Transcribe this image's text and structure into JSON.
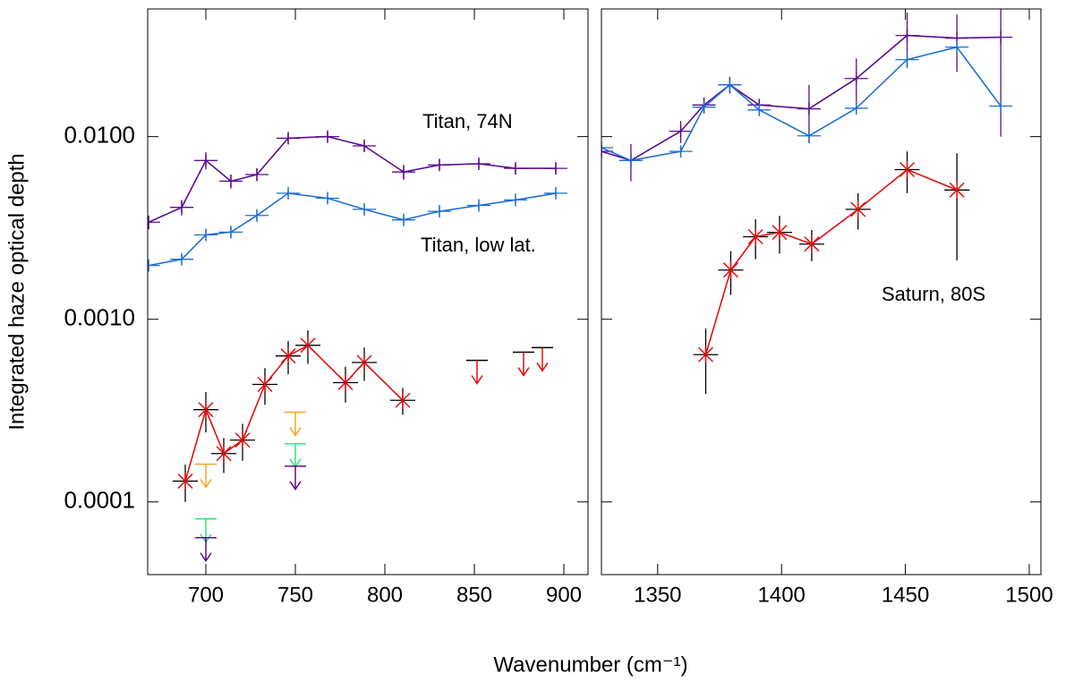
{
  "chart_data": [
    {
      "type": "line",
      "log_y": true,
      "ylabel": "Integrated haze optical depth",
      "xlabel": "Wavenumber (cm⁻¹)",
      "xlim": [
        667.5,
        913.5
      ],
      "xticks": [
        700,
        750,
        800,
        850,
        900
      ],
      "ylim": [
        4e-05,
        0.05
      ],
      "yticks": [
        {
          "value": 0.01,
          "label": "0.0100"
        },
        {
          "value": 0.001,
          "label": "0.0010"
        },
        {
          "value": 0.0001,
          "label": "0.0001"
        }
      ],
      "annotations": [
        "Titan, 74N",
        "Titan, low lat."
      ],
      "series": [
        {
          "color": "#5b0e8e",
          "marker": "plus",
          "errcolor": "#5b0e8e",
          "x": [
            668,
            686.5,
            700,
            714,
            728.5,
            746,
            768,
            788.5,
            810.5,
            830.5,
            852.5,
            873,
            895.5
          ],
          "values": [
            0.0034,
            0.0041,
            0.0074,
            0.0057,
            0.0062,
            0.0098,
            0.01,
            0.0089,
            0.0064,
            0.007,
            0.0071,
            0.0067,
            0.0067
          ],
          "errors": [
            0.0003,
            0.0004,
            0.0008,
            0.0005,
            0.0005,
            0.0007,
            0.0007,
            0.0006,
            0.0006,
            0.0004,
            0.0004,
            0.0004,
            0.0004
          ]
        },
        {
          "color": "#1f6fd6",
          "marker": "plus",
          "errcolor": "#1f6fd6",
          "x": [
            668,
            686.5,
            700,
            714,
            728.5,
            746,
            768,
            788.5,
            810.5,
            830.5,
            852.5,
            873,
            895.5
          ],
          "values": [
            0.00197,
            0.00213,
            0.0029,
            0.003,
            0.0037,
            0.0049,
            0.0046,
            0.004,
            0.0035,
            0.0039,
            0.0042,
            0.0045,
            0.0049
          ],
          "errors": [
            0.0001,
            0.0001,
            0.0002,
            0.0002,
            0.0002,
            0.0002,
            0.0002,
            0.0002,
            0.0002,
            0.0002,
            0.0002,
            0.0002,
            0.0002
          ]
        },
        {
          "color": "#e01010",
          "marker": "asterisk",
          "errcolor": "#000000",
          "x": [
            688.5,
            700,
            710,
            720.5,
            733,
            746,
            757,
            778,
            788.5,
            810
          ],
          "values": [
            0.00013,
            0.00032,
            0.000184,
            0.000218,
            0.00044,
            0.00063,
            0.00072,
            0.00045,
            0.00058,
            0.00036
          ],
          "errors": [
            3e-05,
            8e-05,
            4e-05,
            5e-05,
            0.0001,
            0.00013,
            0.00015,
            0.0001,
            0.00012,
            6e-05
          ]
        }
      ],
      "limits": [
        {
          "color": "#f5a623",
          "bar_color": "#f5a623",
          "x": [
            700,
            750
          ],
          "values": [
            0.000161,
            0.00031
          ]
        },
        {
          "color": "#2fe37f",
          "bar_color": "#2fe37f",
          "x": [
            700,
            750
          ],
          "values": [
            8.07e-05,
            0.000208
          ]
        },
        {
          "color": "#5b0e8e",
          "bar_color": "#5b0e8e",
          "x": [
            700,
            750
          ],
          "values": [
            6.37e-05,
            0.000157
          ]
        },
        {
          "color": "#e01010",
          "bar_color": "#000000",
          "x": [
            851.5,
            877.5,
            888
          ],
          "values": [
            0.000596,
            0.00066,
            0.0007
          ]
        }
      ]
    },
    {
      "type": "line",
      "log_y": true,
      "xlim": [
        1327.3,
        1504.7
      ],
      "xticks": [
        1350,
        1400,
        1450,
        1500
      ],
      "ylim": [
        4e-05,
        0.05
      ],
      "yticks": [
        0.01,
        0.001,
        0.0001
      ],
      "annotations": [
        "Saturn, 80S"
      ],
      "series": [
        {
          "color": "#5b0e8e",
          "marker": "plus",
          "errcolor": "#5b0e8e",
          "x": [
            1327.3,
            1339.2,
            1359.3,
            1368.7,
            1379.1,
            1391,
            1411.1,
            1430.2,
            1450.7,
            1470.8,
            1488.5
          ],
          "values": [
            0.0083,
            0.0074,
            0.0107,
            0.0149,
            0.0192,
            0.0149,
            0.0142,
            0.0208,
            0.0358,
            0.0346,
            0.035
          ],
          "errors": [
            0.0005,
            0.0017,
            0.0015,
            0.0015,
            0.002,
            0.001,
            0.005,
            0.006,
            0.012,
            0.012,
            0.025
          ]
        },
        {
          "color": "#1f6fd6",
          "marker": "plus",
          "errcolor": "#1f6fd6",
          "x": [
            1327.3,
            1339.2,
            1359.3,
            1368.7,
            1379.1,
            1391,
            1411.1,
            1430.2,
            1450.7,
            1470.8,
            1488.5
          ],
          "values": [
            0.0087,
            0.0074,
            0.0083,
            0.0145,
            0.0192,
            0.014,
            0.0101,
            0.0143,
            0.0264,
            0.0309,
            0.0147
          ],
          "errors": [
            0.0003,
            0.0003,
            0.0004,
            0.0005,
            0.0008,
            0.0005,
            0.0004,
            0.0005,
            0.0008,
            0.0008,
            0.0006
          ]
        },
        {
          "color": "#e01010",
          "marker": "asterisk",
          "errcolor": "#000000",
          "x": [
            1369.4,
            1379.5,
            1389.5,
            1399.2,
            1412.2,
            1430.9,
            1450.7,
            1470.8
          ],
          "values": [
            0.00064,
            0.00186,
            0.00283,
            0.00299,
            0.00258,
            0.004,
            0.0066,
            0.0051
          ],
          "errors": [
            0.00025,
            0.0005,
            0.0007,
            0.0007,
            0.0005,
            0.0009,
            0.0017,
            0.003
          ]
        }
      ],
      "limits": []
    }
  ]
}
